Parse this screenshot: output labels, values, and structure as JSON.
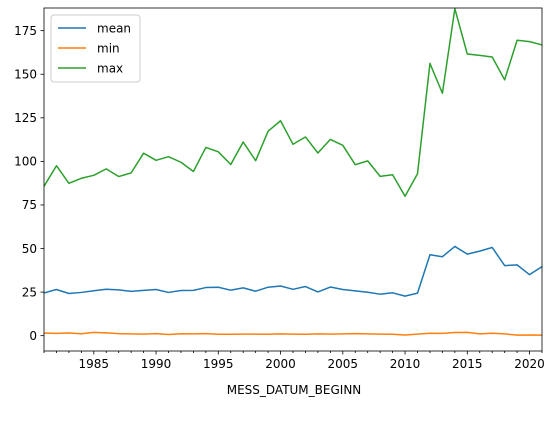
{
  "chart_data": {
    "type": "line",
    "title": "",
    "xlabel": "MESS_DATUM_BEGINN",
    "ylabel": "",
    "xlim": [
      1981,
      2021
    ],
    "ylim": [
      -8.8,
      188
    ],
    "x_ticks": [
      1985,
      1990,
      1995,
      2000,
      2005,
      2010,
      2015,
      2020
    ],
    "y_ticks": [
      0,
      25,
      50,
      75,
      100,
      125,
      150,
      175
    ],
    "grid": false,
    "legend_position": "upper left",
    "x": [
      1981,
      1982,
      1983,
      1984,
      1985,
      1986,
      1987,
      1988,
      1989,
      1990,
      1991,
      1992,
      1993,
      1994,
      1995,
      1996,
      1997,
      1998,
      1999,
      2000,
      2001,
      2002,
      2003,
      2004,
      2005,
      2006,
      2007,
      2008,
      2009,
      2010,
      2011,
      2012,
      2013,
      2014,
      2015,
      2016,
      2017,
      2018,
      2019,
      2020,
      2021
    ],
    "series": [
      {
        "name": "mean",
        "color": "#1f77b4",
        "values": [
          24.5,
          26.5,
          24.2,
          24.8,
          25.8,
          26.6,
          26.3,
          25.4,
          26.0,
          26.5,
          24.8,
          25.9,
          26.0,
          27.6,
          27.8,
          26.1,
          27.4,
          25.5,
          27.8,
          28.5,
          26.6,
          28.2,
          25.1,
          27.9,
          26.5,
          25.7,
          24.9,
          23.8,
          24.6,
          22.7,
          24.4,
          46.4,
          45.3,
          51.2,
          46.8,
          48.5,
          50.6,
          40.2,
          40.6,
          35.0,
          39.6
        ]
      },
      {
        "name": "min",
        "color": "#ff7f0e",
        "values": [
          1.5,
          1.3,
          1.5,
          1.1,
          1.9,
          1.6,
          1.2,
          1.0,
          0.9,
          1.2,
          0.7,
          1.1,
          1.0,
          1.2,
          0.8,
          0.8,
          0.9,
          0.9,
          0.8,
          1.0,
          0.9,
          0.8,
          1.0,
          0.9,
          1.0,
          1.2,
          1.0,
          0.9,
          0.8,
          0.4,
          0.9,
          1.4,
          1.3,
          1.8,
          1.9,
          1.0,
          1.4,
          1.0,
          0.3,
          0.4,
          0.3
        ]
      },
      {
        "name": "max",
        "color": "#2ca02c",
        "values": [
          85.7,
          97.5,
          87.4,
          90.3,
          92.0,
          95.7,
          91.3,
          93.4,
          104.7,
          100.6,
          102.7,
          99.5,
          94.2,
          108.0,
          105.5,
          98.2,
          111.1,
          100.4,
          117.3,
          123.3,
          109.8,
          114.0,
          104.8,
          112.6,
          109.2,
          98.1,
          100.3,
          91.4,
          92.3,
          80.0,
          92.9,
          156.2,
          139.1,
          187.6,
          161.6,
          160.8,
          159.9,
          146.8,
          169.5,
          168.7,
          166.8
        ]
      }
    ]
  }
}
